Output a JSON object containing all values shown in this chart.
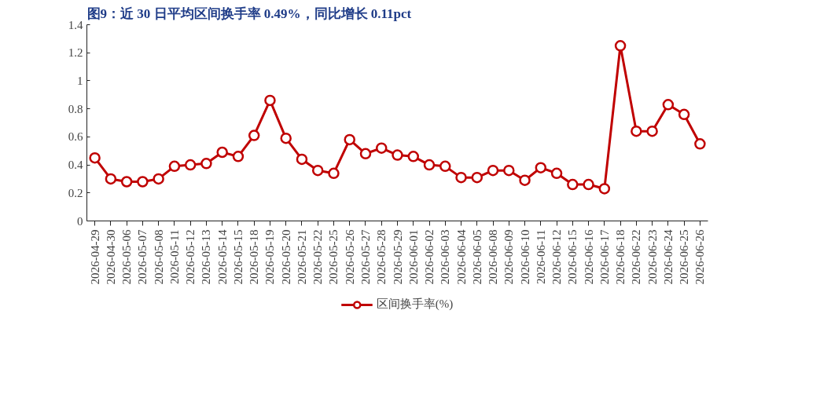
{
  "chart_data": {
    "type": "line",
    "title": "图9：近 30 日平均区间换手率 0.49%，同比增长 0.11pct",
    "categories": [
      "2026-04-29",
      "2026-04-30",
      "2026-05-06",
      "2026-05-07",
      "2026-05-08",
      "2026-05-11",
      "2026-05-12",
      "2026-05-13",
      "2026-05-14",
      "2026-05-15",
      "2026-05-18",
      "2026-05-19",
      "2026-05-20",
      "2026-05-21",
      "2026-05-22",
      "2026-05-25",
      "2026-05-26",
      "2026-05-27",
      "2026-05-28",
      "2026-05-29",
      "2026-06-01",
      "2026-06-02",
      "2026-06-03",
      "2026-06-04",
      "2026-06-05",
      "2026-06-08",
      "2026-06-09",
      "2026-06-10",
      "2026-06-11",
      "2026-06-12",
      "2026-06-15",
      "2026-06-16",
      "2026-06-17",
      "2026-06-18",
      "2026-06-22",
      "2026-06-23",
      "2026-06-24",
      "2026-06-25",
      "2026-06-26"
    ],
    "series": [
      {
        "name": "区间换手率(%)",
        "color": "#c00000",
        "values": [
          0.45,
          0.3,
          0.28,
          0.28,
          0.3,
          0.39,
          0.4,
          0.41,
          0.49,
          0.46,
          0.61,
          0.86,
          0.59,
          0.44,
          0.36,
          0.34,
          0.58,
          0.48,
          0.52,
          0.47,
          0.46,
          0.4,
          0.39,
          0.31,
          0.31,
          0.36,
          0.36,
          0.29,
          0.38,
          0.34,
          0.26,
          0.26,
          0.23,
          1.25,
          0.64,
          0.64,
          0.83,
          0.76,
          0.55
        ]
      }
    ],
    "ylim": [
      0,
      1.4
    ],
    "yticks": [
      0,
      0.2,
      0.4,
      0.6,
      0.8,
      1,
      1.2,
      1.4
    ],
    "grid": false,
    "legend": "bottom",
    "marker": "circle",
    "line_style": "solid"
  }
}
